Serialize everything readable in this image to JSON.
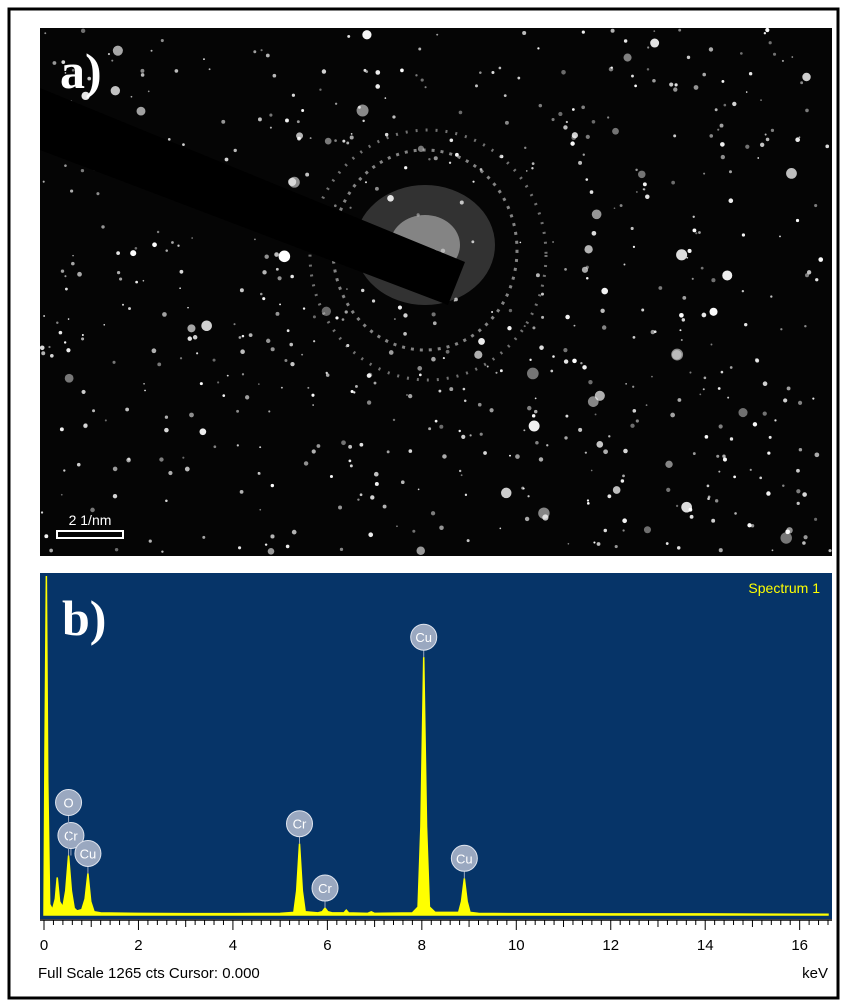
{
  "panel_a": {
    "label": "a)",
    "scale_bar": "2 1/nm"
  },
  "chart_data": {
    "type": "area",
    "panel_label": "b)",
    "series_name": "Spectrum 1",
    "color": "#ffff00",
    "x": [
      0,
      0.02,
      0.05,
      0.08,
      0.12,
      0.18,
      0.24,
      0.28,
      0.33,
      0.4,
      0.46,
      0.52,
      0.58,
      0.64,
      0.7,
      0.8,
      0.87,
      0.93,
      0.99,
      1.06,
      1.2,
      2,
      3,
      4,
      5,
      5.29,
      5.35,
      5.41,
      5.47,
      5.53,
      5.8,
      5.89,
      5.95,
      6.01,
      6.1,
      6.35,
      6.4,
      6.45,
      6.85,
      6.93,
      7.0,
      7.8,
      7.92,
      7.98,
      8.04,
      8.1,
      8.16,
      8.28,
      8.78,
      8.84,
      8.9,
      8.96,
      9.02,
      9.2,
      10,
      12,
      14,
      16,
      16.6
    ],
    "values": [
      0,
      600,
      1265,
      500,
      40,
      20,
      60,
      140,
      50,
      30,
      90,
      222,
      90,
      25,
      15,
      20,
      60,
      155,
      50,
      12,
      8,
      6,
      5,
      5,
      6,
      10,
      90,
      266,
      90,
      12,
      8,
      12,
      26,
      12,
      8,
      8,
      18,
      8,
      6,
      12,
      6,
      8,
      30,
      330,
      962,
      330,
      30,
      10,
      10,
      50,
      137,
      50,
      10,
      6,
      5,
      4,
      4,
      3,
      3
    ],
    "peak_labels": [
      {
        "label": "Cr",
        "x": 0.57
      },
      {
        "label": "O",
        "x": 0.52
      },
      {
        "label": "Cu",
        "x": 0.93
      },
      {
        "label": "Cr",
        "x": 5.41
      },
      {
        "label": "Cr",
        "x": 5.95
      },
      {
        "label": "Cu",
        "x": 8.04
      },
      {
        "label": "Cu",
        "x": 8.9
      }
    ],
    "xlim": [
      0,
      16.6
    ],
    "ylim": [
      0,
      1265
    ],
    "xticks": [
      0,
      2,
      4,
      6,
      8,
      10,
      12,
      14,
      16
    ],
    "x_label": "keV",
    "status": "Full Scale 1265 cts Cursor: 0.000"
  }
}
